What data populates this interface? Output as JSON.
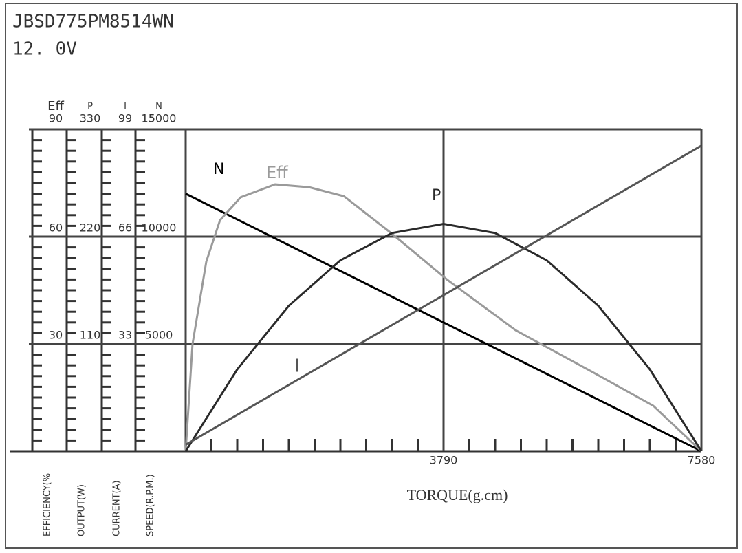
{
  "chart_data": {
    "type": "line",
    "title": "JBSD775PM8514WN",
    "subtitle": "12. 0V",
    "x_label": "TORQUE(g.cm)",
    "xlim": [
      0,
      7580
    ],
    "xticks": [
      3790,
      7580
    ],
    "grid": true,
    "axes": [
      {
        "name": "Eff",
        "label": "EFFICIENCY(%",
        "ylim": [
          0,
          90
        ],
        "yticks": [
          30,
          60,
          90
        ]
      },
      {
        "name": "P",
        "label": "OUTPUT(W)",
        "ylim": [
          0,
          330
        ],
        "yticks": [
          110,
          220,
          330
        ]
      },
      {
        "name": "I",
        "label": "CURRENT(A)",
        "ylim": [
          0,
          99
        ],
        "yticks": [
          33,
          66,
          99
        ]
      },
      {
        "name": "N",
        "label": "SPEED(R.P.M.)",
        "ylim": [
          0,
          15000
        ],
        "yticks": [
          5000,
          10000,
          15000
        ]
      }
    ],
    "series": [
      {
        "name": "N",
        "axis": "N",
        "color": "#000000",
        "x": [
          0,
          7580
        ],
        "values": [
          12000,
          0
        ]
      },
      {
        "name": "Eff",
        "axis": "Eff",
        "color": "#9a9a9a",
        "x": [
          0,
          101,
          303,
          505,
          809,
          1314,
          1819,
          2325,
          3032,
          3840,
          4851,
          5963,
          6872,
          7580
        ],
        "values": [
          0,
          30,
          53,
          64.6,
          71,
          74.6,
          73.8,
          71.3,
          60.8,
          48,
          33.8,
          22.3,
          12.7,
          0
        ]
      },
      {
        "name": "P",
        "axis": "P",
        "color": "#2a2a2a",
        "x": [
          0,
          758,
          1516,
          2274,
          3032,
          3790,
          4548,
          5306,
          6064,
          6822,
          7580
        ],
        "values": [
          0,
          83.9,
          149.1,
          195.7,
          223.7,
          233,
          223.7,
          195.7,
          149.1,
          83.9,
          0
        ]
      },
      {
        "name": "I",
        "axis": "I",
        "color": "#555555",
        "x": [
          0,
          7580
        ],
        "values": [
          2,
          94
        ]
      }
    ]
  }
}
